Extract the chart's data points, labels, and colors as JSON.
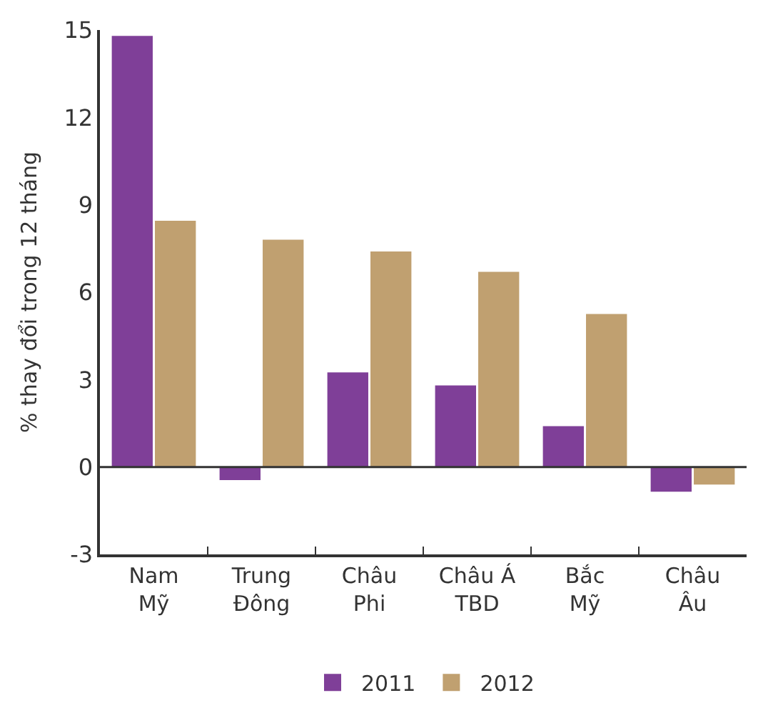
{
  "chart_data": {
    "type": "bar",
    "ylabel": "% thay đổi trong 12 tháng",
    "categories": [
      "Nam\nMỹ",
      "Trung\nĐông",
      "Châu\nPhi",
      "Châu Á\nTBD",
      "Bắc\nMỹ",
      "Châu\nÂu"
    ],
    "series": [
      {
        "name": "2011",
        "color": "#7f3f98",
        "values": [
          14.8,
          -0.45,
          3.25,
          2.8,
          1.4,
          -0.85
        ]
      },
      {
        "name": "2012",
        "color": "#c0a070",
        "values": [
          8.45,
          7.8,
          7.4,
          6.7,
          5.25,
          -0.6
        ]
      }
    ],
    "ylim": [
      -3,
      15
    ],
    "yticks": [
      -3,
      0,
      3,
      6,
      9,
      12,
      15
    ],
    "ref_lines": [
      {
        "axis": "y",
        "value": 0,
        "color": "#333333"
      }
    ],
    "legend": "bottom"
  }
}
